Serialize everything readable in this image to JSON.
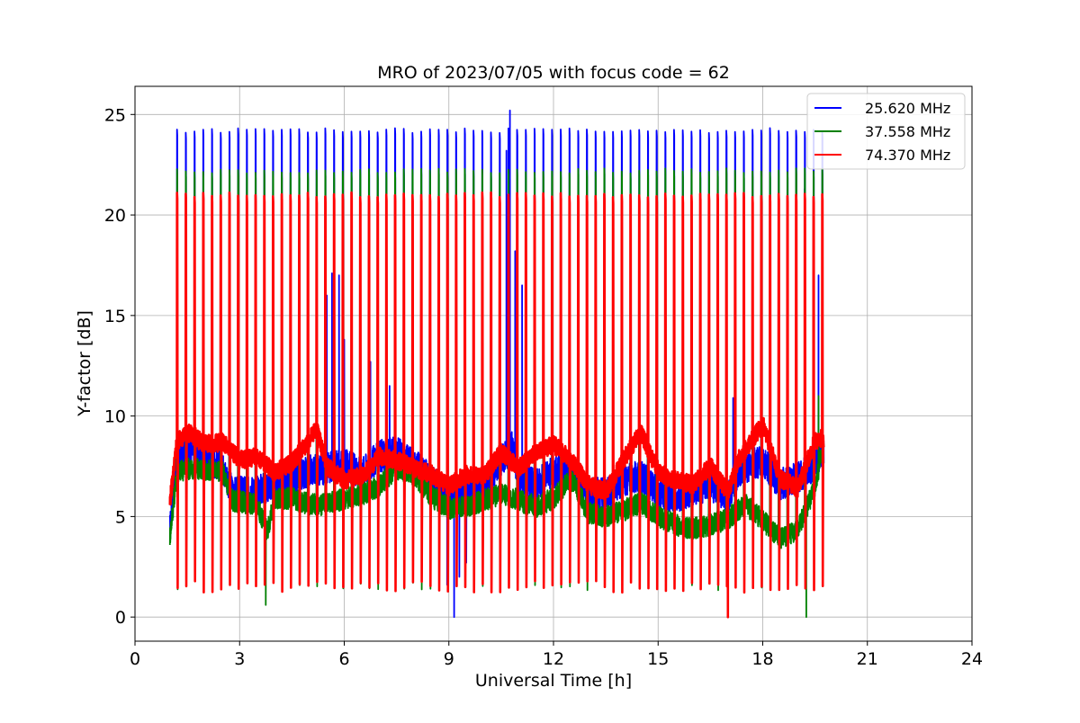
{
  "chart_data": {
    "type": "line",
    "title": "MRO of 2023/07/05 with focus code = 62",
    "xlabel": "Universal Time [h]",
    "ylabel": "Y-factor [dB]",
    "xlim": [
      0,
      24
    ],
    "ylim": [
      -1.2,
      26.4
    ],
    "xticks": [
      0,
      3,
      6,
      9,
      12,
      15,
      18,
      21,
      24
    ],
    "yticks": [
      0,
      5,
      10,
      15,
      20,
      25
    ],
    "grid": true,
    "legend_position": "top-right",
    "pulse_period_h": 0.25,
    "pulse_start_h": 1.2,
    "pulse_end_h": 19.75,
    "series": [
      {
        "name": "25.620 MHz",
        "color": "#0000ff",
        "pulse_peak": 24.2,
        "pulse_trough": 2.0,
        "baseline": [
          [
            1.0,
            4.3
          ],
          [
            1.2,
            8.0
          ],
          [
            1.5,
            8.4
          ],
          [
            2.0,
            8.0
          ],
          [
            2.5,
            7.5
          ],
          [
            2.8,
            6.2
          ],
          [
            3.5,
            6.3
          ],
          [
            4.0,
            6.6
          ],
          [
            4.5,
            6.8
          ],
          [
            5.0,
            7.3
          ],
          [
            5.5,
            7.4
          ],
          [
            6.0,
            7.6
          ],
          [
            6.5,
            7.2
          ],
          [
            7.0,
            8.0
          ],
          [
            7.5,
            8.2
          ],
          [
            8.0,
            7.6
          ],
          [
            8.5,
            6.8
          ],
          [
            9.0,
            6.0
          ],
          [
            9.5,
            6.2
          ],
          [
            10.0,
            6.6
          ],
          [
            10.5,
            7.8
          ],
          [
            10.8,
            8.5
          ],
          [
            11.0,
            7.0
          ],
          [
            11.5,
            6.6
          ],
          [
            12.0,
            7.2
          ],
          [
            12.5,
            7.4
          ],
          [
            13.0,
            6.2
          ],
          [
            13.5,
            6.1
          ],
          [
            14.0,
            6.8
          ],
          [
            14.5,
            7.0
          ],
          [
            15.0,
            6.2
          ],
          [
            15.5,
            6.0
          ],
          [
            16.0,
            6.3
          ],
          [
            16.5,
            6.6
          ],
          [
            17.0,
            5.9
          ],
          [
            17.3,
            7.3
          ],
          [
            18.0,
            7.8
          ],
          [
            18.5,
            6.6
          ],
          [
            19.0,
            6.9
          ],
          [
            19.5,
            7.6
          ],
          [
            19.75,
            8.4
          ]
        ],
        "spikes": [
          [
            5.5,
            16.0
          ],
          [
            5.65,
            17.1
          ],
          [
            5.85,
            17.0
          ],
          [
            6.0,
            13.8
          ],
          [
            6.75,
            12.7
          ],
          [
            7.3,
            11.5
          ],
          [
            8.2,
            11.2
          ],
          [
            10.65,
            23.2
          ],
          [
            10.75,
            25.2
          ],
          [
            10.9,
            18.2
          ],
          [
            11.1,
            16.5
          ],
          [
            17.15,
            10.9
          ],
          [
            19.2,
            21.3
          ],
          [
            19.45,
            16.5
          ],
          [
            19.6,
            17.0
          ],
          [
            19.7,
            17.9
          ]
        ],
        "dips": [
          [
            8.95,
            1.6
          ],
          [
            9.15,
            0.0
          ],
          [
            9.3,
            2.0
          ],
          [
            9.5,
            2.7
          ]
        ]
      },
      {
        "name": "37.558 MHz",
        "color": "#008000",
        "pulse_peak": 22.2,
        "pulse_trough": 1.5,
        "baseline": [
          [
            1.0,
            4.0
          ],
          [
            1.2,
            7.2
          ],
          [
            1.5,
            7.4
          ],
          [
            2.0,
            7.3
          ],
          [
            2.5,
            7.3
          ],
          [
            2.8,
            5.8
          ],
          [
            3.5,
            5.6
          ],
          [
            3.8,
            4.2
          ],
          [
            4.0,
            5.9
          ],
          [
            4.5,
            5.9
          ],
          [
            5.0,
            5.6
          ],
          [
            5.5,
            5.6
          ],
          [
            6.0,
            5.9
          ],
          [
            6.5,
            6.1
          ],
          [
            7.0,
            6.5
          ],
          [
            7.5,
            7.4
          ],
          [
            8.0,
            7.1
          ],
          [
            8.5,
            6.0
          ],
          [
            9.0,
            5.4
          ],
          [
            9.5,
            5.5
          ],
          [
            10.0,
            5.8
          ],
          [
            10.5,
            6.1
          ],
          [
            11.0,
            5.8
          ],
          [
            11.5,
            5.5
          ],
          [
            12.0,
            5.9
          ],
          [
            12.5,
            6.9
          ],
          [
            13.0,
            5.2
          ],
          [
            13.5,
            5.0
          ],
          [
            14.0,
            5.3
          ],
          [
            14.5,
            5.7
          ],
          [
            15.0,
            5.0
          ],
          [
            15.5,
            4.6
          ],
          [
            16.0,
            4.4
          ],
          [
            16.5,
            4.6
          ],
          [
            17.0,
            4.9
          ],
          [
            17.5,
            5.6
          ],
          [
            18.0,
            4.8
          ],
          [
            18.5,
            3.9
          ],
          [
            19.0,
            4.3
          ],
          [
            19.5,
            6.5
          ],
          [
            19.75,
            8.6
          ]
        ],
        "spikes": [
          [
            12.45,
            12.0
          ],
          [
            19.6,
            11.0
          ]
        ],
        "dips": [
          [
            3.75,
            0.6
          ],
          [
            19.25,
            0.0
          ]
        ]
      },
      {
        "name": "74.370 MHz",
        "color": "#ff0000",
        "pulse_peak": 21.0,
        "pulse_trough": 1.4,
        "baseline": [
          [
            1.0,
            5.7
          ],
          [
            1.2,
            8.7
          ],
          [
            1.5,
            9.2
          ],
          [
            2.0,
            8.6
          ],
          [
            2.5,
            8.7
          ],
          [
            2.8,
            8.2
          ],
          [
            3.0,
            7.8
          ],
          [
            3.5,
            8.0
          ],
          [
            4.0,
            7.2
          ],
          [
            4.5,
            7.7
          ],
          [
            5.0,
            8.8
          ],
          [
            5.2,
            9.4
          ],
          [
            5.5,
            7.5
          ],
          [
            6.0,
            6.8
          ],
          [
            6.5,
            7.0
          ],
          [
            7.0,
            8.0
          ],
          [
            7.5,
            7.8
          ],
          [
            8.0,
            7.4
          ],
          [
            8.5,
            7.1
          ],
          [
            9.0,
            6.5
          ],
          [
            9.5,
            7.1
          ],
          [
            10.0,
            7.0
          ],
          [
            10.5,
            8.2
          ],
          [
            11.0,
            7.4
          ],
          [
            11.5,
            8.2
          ],
          [
            12.0,
            8.6
          ],
          [
            12.5,
            7.8
          ],
          [
            13.0,
            6.6
          ],
          [
            13.5,
            6.2
          ],
          [
            14.0,
            7.8
          ],
          [
            14.5,
            9.2
          ],
          [
            15.0,
            7.2
          ],
          [
            15.5,
            6.8
          ],
          [
            16.0,
            6.6
          ],
          [
            16.5,
            7.5
          ],
          [
            17.0,
            6.2
          ],
          [
            17.3,
            7.8
          ],
          [
            18.0,
            9.6
          ],
          [
            18.5,
            6.9
          ],
          [
            19.0,
            6.4
          ],
          [
            19.5,
            8.8
          ],
          [
            19.75,
            8.9
          ]
        ],
        "spikes": [],
        "dips": [
          [
            17.0,
            0.0
          ]
        ]
      }
    ]
  }
}
